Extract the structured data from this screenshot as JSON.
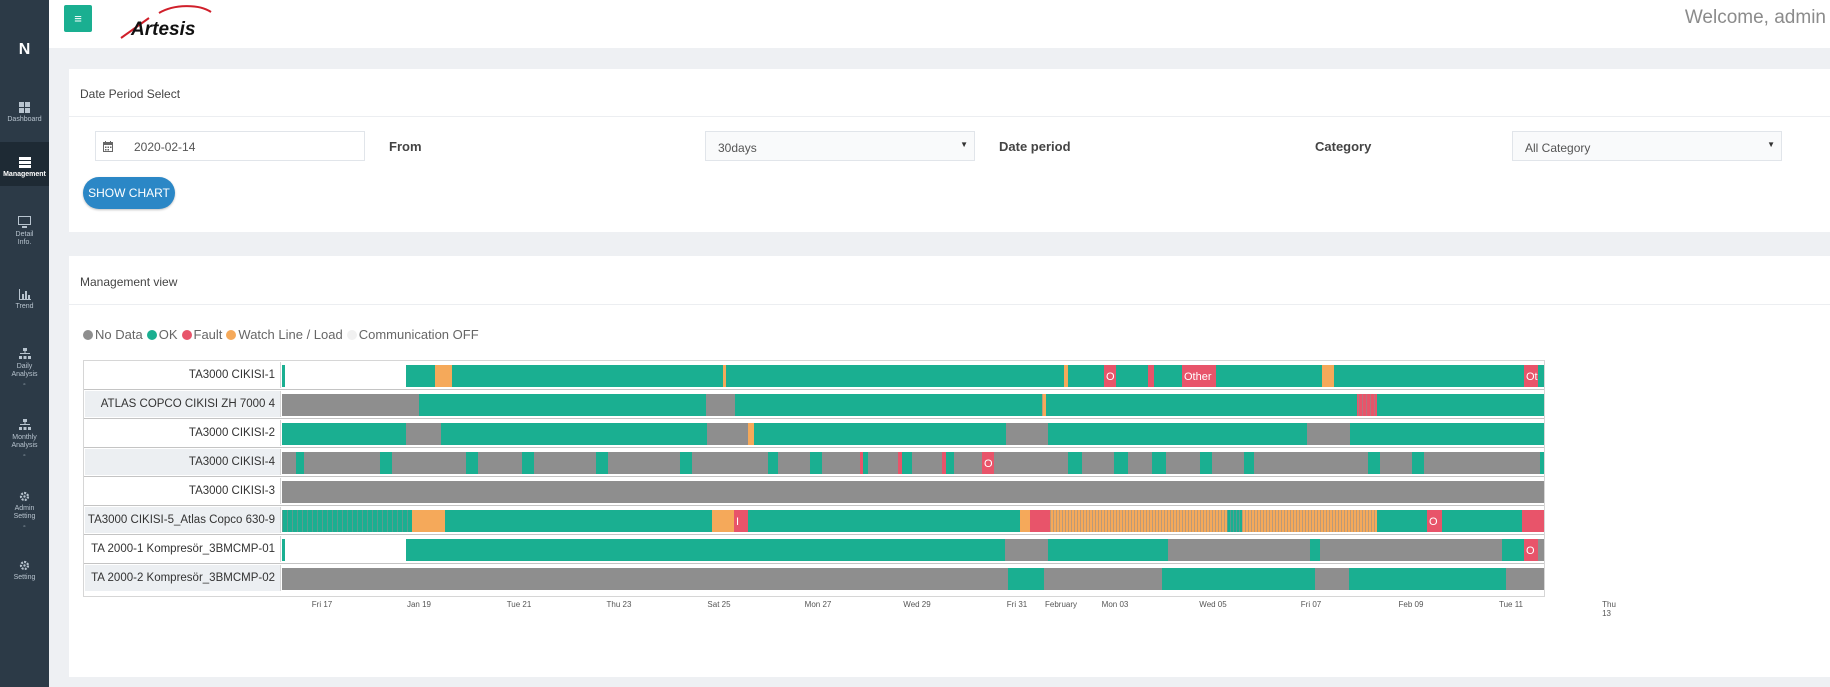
{
  "sidebar": {
    "brand": "N",
    "items": [
      {
        "label": "Dashboard",
        "icon": "grid-icon"
      },
      {
        "label": "Management",
        "icon": "server-icon",
        "active": true
      },
      {
        "label": "Detail Info.",
        "icon": "monitor-icon"
      },
      {
        "label": "Trend",
        "icon": "bar-chart-icon"
      },
      {
        "label": "Daily Analysis",
        "icon": "sitemap-icon"
      },
      {
        "label": "Monthly Analysis",
        "icon": "sitemap-icon"
      },
      {
        "label": "Admin Setting",
        "icon": "gear-icon"
      },
      {
        "label": "Setting",
        "icon": "gear-icon"
      }
    ]
  },
  "header": {
    "menu_icon": "hamburger-icon",
    "logo_text": "Artesis",
    "welcome": "Welcome, admin"
  },
  "date_panel": {
    "title": "Date Period Select",
    "date_value": "2020-02-14",
    "from_label": "From",
    "period_value": "30days",
    "period_label": "Date period",
    "category_label": "Category",
    "category_value": "All Category",
    "show_button": "SHOW CHART"
  },
  "management_panel": {
    "title": "Management view",
    "legend": [
      {
        "label": "No Data",
        "color": "#8e8e8e"
      },
      {
        "label": "OK",
        "color": "#1aaf91"
      },
      {
        "label": "Fault",
        "color": "#e8546a"
      },
      {
        "label": "Watch Line / Load",
        "color": "#f5a95a"
      },
      {
        "label": "Communication OFF",
        "color": "#f1f1f1"
      }
    ]
  },
  "chart_data": {
    "type": "timeline",
    "rows": [
      "TA3000 CIKISI-1",
      "ATLAS COPCO CIKISI ZH 7000 4",
      "TA3000 CIKISI-2",
      "TA3000 CIKISI-4",
      "TA3000 CIKISI-3",
      "TA3000 CIKISI-5_Atlas Copco 630-9",
      "TA 2000-1 Kompresör_3BMCMP-01",
      "TA 2000-2 Kompresör_3BMCMP-02"
    ],
    "x_ticks": [
      "Fri 17",
      "Jan 19",
      "Tue 21",
      "Thu 23",
      "Sat 25",
      "Mon 27",
      "Wed 29",
      "Fri 31",
      "February",
      "Mon 03",
      "Wed 05",
      "Fri 07",
      "Feb 09",
      "Tue 11",
      "Thu 13"
    ],
    "bar_labels": [
      {
        "row": 0,
        "text": "O"
      },
      {
        "row": 0,
        "text": "Other"
      },
      {
        "row": 0,
        "text": "Ot"
      },
      {
        "row": 3,
        "text": "O"
      },
      {
        "row": 5,
        "text": "I"
      },
      {
        "row": 5,
        "text": "O"
      },
      {
        "row": 6,
        "text": "O"
      }
    ]
  }
}
